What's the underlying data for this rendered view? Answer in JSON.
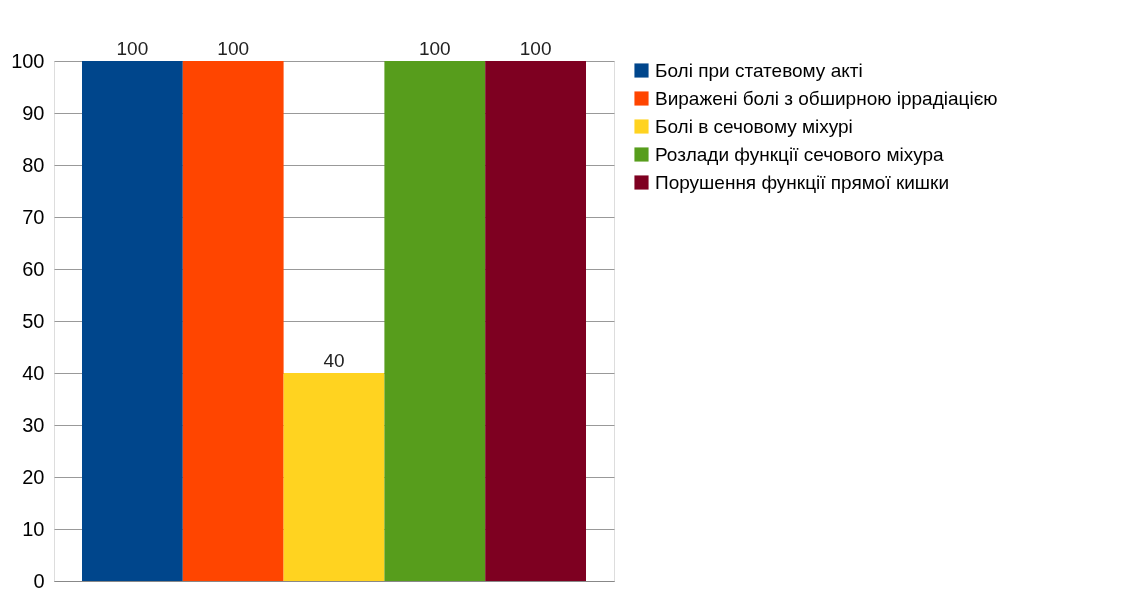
{
  "chart_data": {
    "type": "bar",
    "categories": [
      null
    ],
    "series": [
      {
        "name": "Болі при статевому акті",
        "color": "#00468c",
        "values": [
          100
        ]
      },
      {
        "name": "Виражені болі з обширною іррадіацією",
        "color": "#ff4500",
        "values": [
          100
        ]
      },
      {
        "name": "Болі в сечовому міхурі",
        "color": "#ffd320",
        "values": [
          40
        ]
      },
      {
        "name": "Розлади функції сечового міхура",
        "color": "#579d1c",
        "values": [
          100
        ]
      },
      {
        "name": "Порушення функції прямої кишки",
        "color": "#7e0021",
        "values": [
          100
        ]
      }
    ],
    "ylim": [
      0,
      100
    ],
    "yticks": [
      0,
      10,
      20,
      30,
      40,
      50,
      60,
      70,
      80,
      90,
      100
    ],
    "grid": "y",
    "legend": "right",
    "data_labels": true,
    "tick_labels": "y"
  }
}
